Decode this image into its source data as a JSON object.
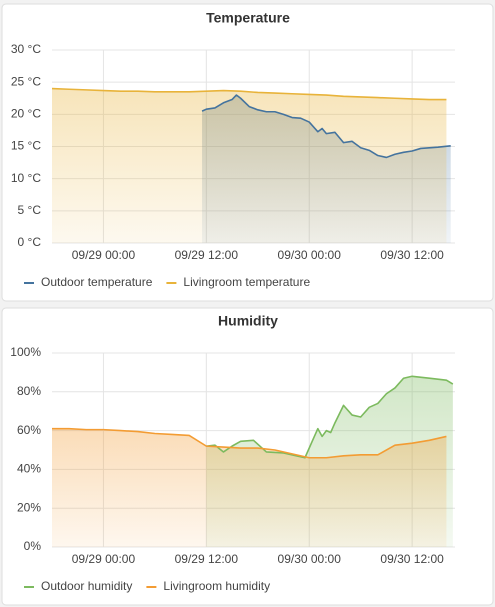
{
  "chart_data": [
    {
      "type": "line",
      "title": "Temperature",
      "xlim": [
        "09/28 18:00",
        "09/30 17:00"
      ],
      "xticks": [
        "09/29 00:00",
        "09/29 12:00",
        "09/30 00:00",
        "09/30 12:00"
      ],
      "ylim": [
        0,
        30
      ],
      "yticks": [
        {
          "value": 0,
          "label": "0 °C"
        },
        {
          "value": 5,
          "label": "5 °C"
        },
        {
          "value": 10,
          "label": "10 °C"
        },
        {
          "value": 15,
          "label": "15 °C"
        },
        {
          "value": 20,
          "label": "20 °C"
        },
        {
          "value": 25,
          "label": "25 °C"
        },
        {
          "value": 30,
          "label": "30 °C"
        }
      ],
      "grid": true,
      "series": [
        {
          "name": "Outdoor temperature",
          "color": "#44739e",
          "x": [
            "09/29 11:30",
            "09/29 12:00",
            "09/29 13:00",
            "09/29 14:00",
            "09/29 15:00",
            "09/29 15:30",
            "09/29 16:00",
            "09/29 17:00",
            "09/29 18:00",
            "09/29 19:00",
            "09/29 20:00",
            "09/29 21:00",
            "09/29 22:00",
            "09/29 23:00",
            "09/30 00:00",
            "09/30 01:00",
            "09/30 01:30",
            "09/30 02:00",
            "09/30 03:00",
            "09/30 04:00",
            "09/30 05:00",
            "09/30 06:00",
            "09/30 07:00",
            "09/30 08:00",
            "09/30 09:00",
            "09/30 10:00",
            "09/30 11:00",
            "09/30 12:00",
            "09/30 13:00",
            "09/30 15:00",
            "09/30 16:30"
          ],
          "values": [
            20.5,
            20.8,
            21.0,
            21.8,
            22.3,
            23.0,
            22.5,
            21.2,
            20.7,
            20.4,
            20.4,
            20.0,
            19.5,
            19.4,
            18.8,
            17.3,
            17.8,
            17.0,
            17.2,
            15.6,
            15.8,
            14.8,
            14.4,
            13.6,
            13.3,
            13.8,
            14.1,
            14.3,
            14.7,
            14.9,
            15.1
          ]
        },
        {
          "name": "Livingroom temperature",
          "color": "#e8b33a",
          "x": [
            "09/28 18:00",
            "09/28 20:00",
            "09/28 22:00",
            "09/29 00:00",
            "09/29 02:00",
            "09/29 04:00",
            "09/29 06:00",
            "09/29 08:00",
            "09/29 10:00",
            "09/29 12:00",
            "09/29 14:00",
            "09/29 16:00",
            "09/29 18:00",
            "09/29 20:00",
            "09/29 22:00",
            "09/30 00:00",
            "09/30 02:00",
            "09/30 04:00",
            "09/30 06:00",
            "09/30 08:00",
            "09/30 10:00",
            "09/30 12:00",
            "09/30 14:00",
            "09/30 16:00"
          ],
          "values": [
            24.0,
            23.9,
            23.8,
            23.7,
            23.6,
            23.6,
            23.5,
            23.5,
            23.5,
            23.6,
            23.7,
            23.6,
            23.4,
            23.3,
            23.2,
            23.1,
            23.0,
            22.8,
            22.7,
            22.6,
            22.5,
            22.4,
            22.3,
            22.3
          ]
        }
      ]
    },
    {
      "type": "line",
      "title": "Humidity",
      "xlim": [
        "09/28 18:00",
        "09/30 17:00"
      ],
      "xticks": [
        "09/29 00:00",
        "09/29 12:00",
        "09/30 00:00",
        "09/30 12:00"
      ],
      "ylim": [
        0,
        100
      ],
      "yticks": [
        {
          "value": 0,
          "label": "0%"
        },
        {
          "value": 20,
          "label": "20%"
        },
        {
          "value": 40,
          "label": "40%"
        },
        {
          "value": 60,
          "label": "60%"
        },
        {
          "value": 80,
          "label": "80%"
        },
        {
          "value": 100,
          "label": "100%"
        }
      ],
      "grid": true,
      "series": [
        {
          "name": "Outdoor humidity",
          "color": "#7cba5e",
          "x": [
            "09/29 12:00",
            "09/29 13:00",
            "09/29 14:00",
            "09/29 15:00",
            "09/29 16:00",
            "09/29 17:30",
            "09/29 18:30",
            "09/29 19:00",
            "09/29 21:00",
            "09/29 22:30",
            "09/29 23:30",
            "09/30 00:30",
            "09/30 01:00",
            "09/30 01:30",
            "09/30 02:00",
            "09/30 02:30",
            "09/30 03:00",
            "09/30 04:00",
            "09/30 05:00",
            "09/30 06:00",
            "09/30 07:00",
            "09/30 08:00",
            "09/30 09:00",
            "09/30 10:00",
            "09/30 11:00",
            "09/30 12:00",
            "09/30 14:00",
            "09/30 16:00",
            "09/30 16:45"
          ],
          "values": [
            52,
            52.5,
            49,
            52,
            54.5,
            55,
            51,
            49,
            48.5,
            47,
            46,
            56,
            61,
            57,
            60,
            59,
            64,
            73,
            68,
            67,
            72,
            74,
            79,
            82,
            87,
            88,
            87,
            86,
            84
          ]
        },
        {
          "name": "Livingroom humidity",
          "color": "#f39c33",
          "x": [
            "09/28 18:00",
            "09/28 20:00",
            "09/28 22:00",
            "09/29 00:00",
            "09/29 02:00",
            "09/29 04:00",
            "09/29 06:00",
            "09/29 08:00",
            "09/29 10:00",
            "09/29 12:00",
            "09/29 14:00",
            "09/29 16:00",
            "09/29 18:00",
            "09/29 20:00",
            "09/29 22:00",
            "09/30 00:00",
            "09/30 02:00",
            "09/30 04:00",
            "09/30 06:00",
            "09/30 08:00",
            "09/30 10:00",
            "09/30 12:00",
            "09/30 14:00",
            "09/30 16:00"
          ],
          "values": [
            61,
            61,
            60.5,
            60.5,
            60,
            59.5,
            58.5,
            58,
            57.5,
            52,
            51.5,
            51,
            51,
            50,
            48,
            46,
            46,
            47,
            47.5,
            47.5,
            52.5,
            53.5,
            55,
            57
          ]
        }
      ]
    }
  ]
}
